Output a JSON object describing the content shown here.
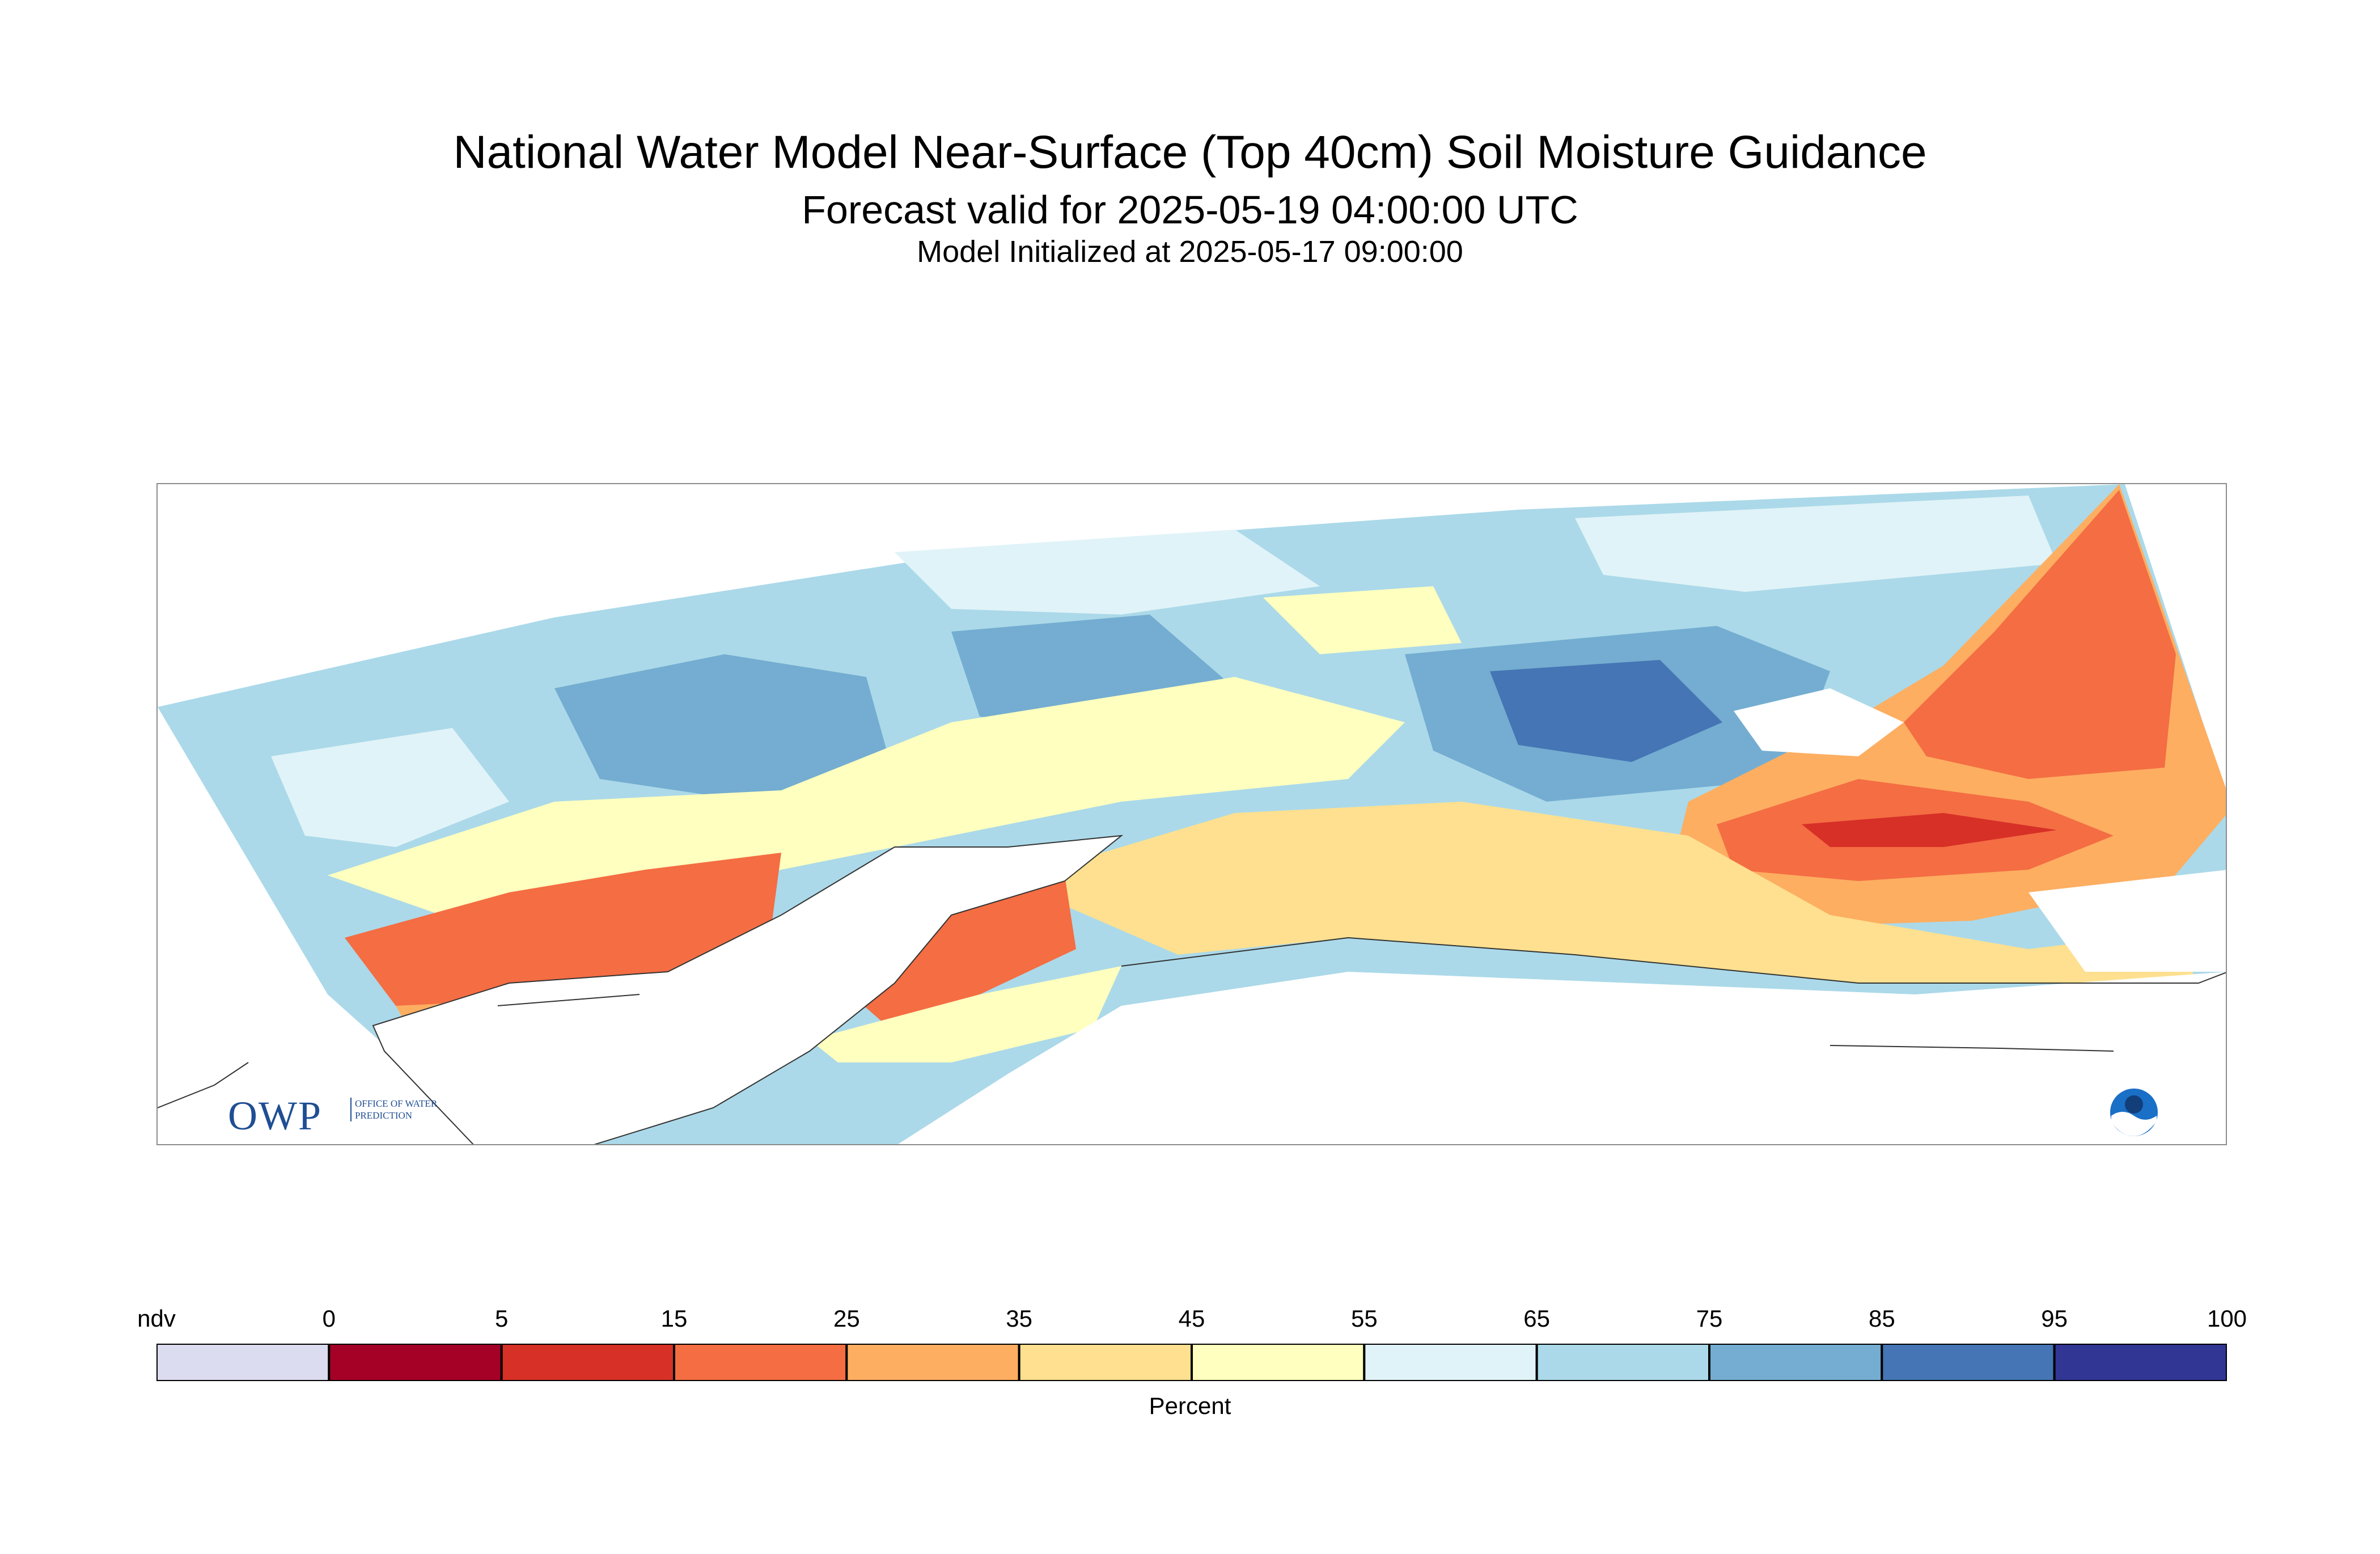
{
  "header": {
    "title": "National Water Model Near-Surface (Top 40cm) Soil Moisture Guidance",
    "subtitle": "Forecast valid for 2025-05-19 04:00:00 UTC",
    "init": "Model Initialized at 2025-05-17 09:00:00"
  },
  "logos": {
    "owp_letters": "OWP",
    "owp_tagline": "OFFICE OF WATER PREDICTION",
    "noaa": "NOAA"
  },
  "legend": {
    "unit": "Percent",
    "ticks": [
      "ndv",
      "0",
      "5",
      "15",
      "25",
      "35",
      "45",
      "55",
      "65",
      "75",
      "85",
      "95",
      "100"
    ],
    "bins": [
      {
        "label": "ndv",
        "color": "#dcdcf0"
      },
      {
        "label": "0-5",
        "color": "#a50026"
      },
      {
        "label": "5-15",
        "color": "#d73027"
      },
      {
        "label": "15-25",
        "color": "#f46d43"
      },
      {
        "label": "25-35",
        "color": "#fdae61"
      },
      {
        "label": "35-45",
        "color": "#fee090"
      },
      {
        "label": "45-55",
        "color": "#ffffbf"
      },
      {
        "label": "55-65",
        "color": "#e0f3f8"
      },
      {
        "label": "65-75",
        "color": "#abd9e9"
      },
      {
        "label": "75-85",
        "color": "#74add1"
      },
      {
        "label": "85-95",
        "color": "#4575b4"
      },
      {
        "label": "95-100",
        "color": "#313695"
      }
    ]
  }
}
